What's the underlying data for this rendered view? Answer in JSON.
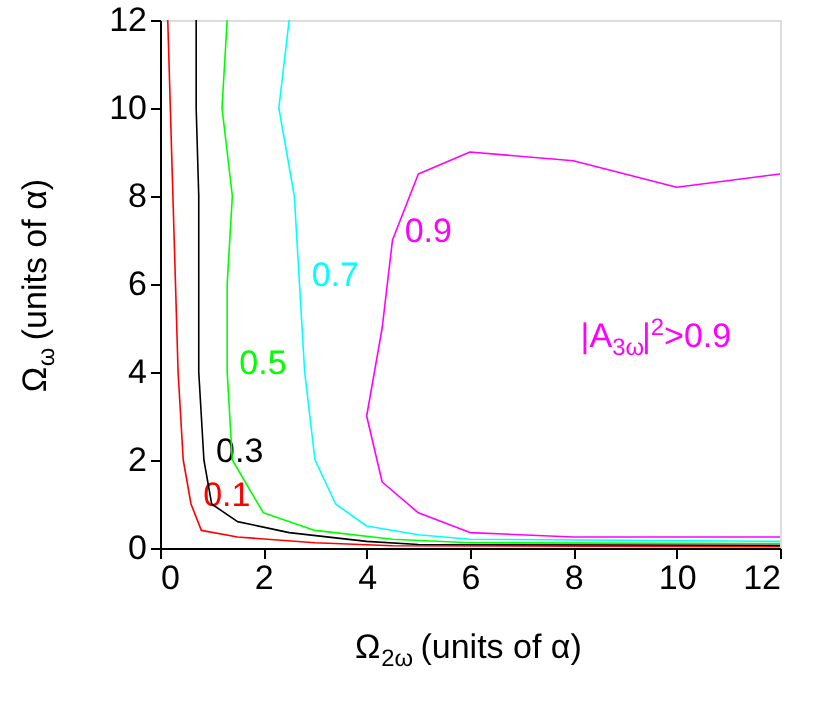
{
  "chart_data": {
    "type": "line",
    "xlabel": "Ω$_{2ω}$ (units of α)",
    "ylabel": "Ω$_{ω}$ (units of α)",
    "xlim": [
      0,
      12
    ],
    "ylim": [
      0,
      12
    ],
    "xticks": [
      0,
      2,
      4,
      6,
      8,
      10,
      12
    ],
    "yticks": [
      0,
      2,
      4,
      6,
      8,
      10,
      12
    ],
    "grid": false,
    "line_style": "solid",
    "marker": "none",
    "series": [
      {
        "name": "0.1",
        "color": "#ff0000",
        "x": [
          0.15,
          0.2,
          0.25,
          0.3,
          0.35,
          0.45,
          0.6,
          0.8,
          1.5,
          3,
          4.5,
          12
        ],
        "values": [
          12,
          10,
          8,
          6,
          4,
          2,
          1,
          0.4,
          0.25,
          0.12,
          0.05,
          0.03
        ]
      },
      {
        "name": "0.3",
        "color": "#000000",
        "x": [
          0.7,
          0.7,
          0.75,
          0.75,
          0.75,
          0.85,
          1,
          1.5,
          2.5,
          4,
          5,
          12
        ],
        "values": [
          12,
          10,
          8,
          6,
          4,
          2,
          1,
          0.6,
          0.35,
          0.15,
          0.08,
          0.06
        ]
      },
      {
        "name": "0.5",
        "color": "#00ff00",
        "x": [
          1.3,
          1.2,
          1.4,
          1.3,
          1.3,
          1.4,
          2,
          3,
          4.5,
          6,
          12
        ],
        "values": [
          12,
          10,
          8,
          6,
          4,
          2,
          0.8,
          0.4,
          0.2,
          0.12,
          0.1
        ]
      },
      {
        "name": "0.7",
        "color": "#00ffff",
        "x": [
          2.5,
          2.3,
          2.6,
          2.7,
          2.8,
          3,
          3.4,
          4,
          5,
          6,
          12
        ],
        "values": [
          12,
          10,
          8,
          6,
          4,
          2,
          1,
          0.5,
          0.3,
          0.2,
          0.15
        ]
      },
      {
        "name": "0.9",
        "color": "#ff00ff",
        "x": [
          12,
          10,
          8,
          6,
          5,
          4.5,
          4.3,
          4,
          4.3,
          5,
          6,
          8,
          12
        ],
        "values": [
          8.5,
          8.2,
          8.8,
          9,
          8.5,
          7,
          5,
          3,
          1.5,
          0.8,
          0.35,
          0.25,
          0.25
        ]
      }
    ],
    "annotations": [
      "|A$_{3ω}$|$^{2}$>0.9"
    ]
  }
}
